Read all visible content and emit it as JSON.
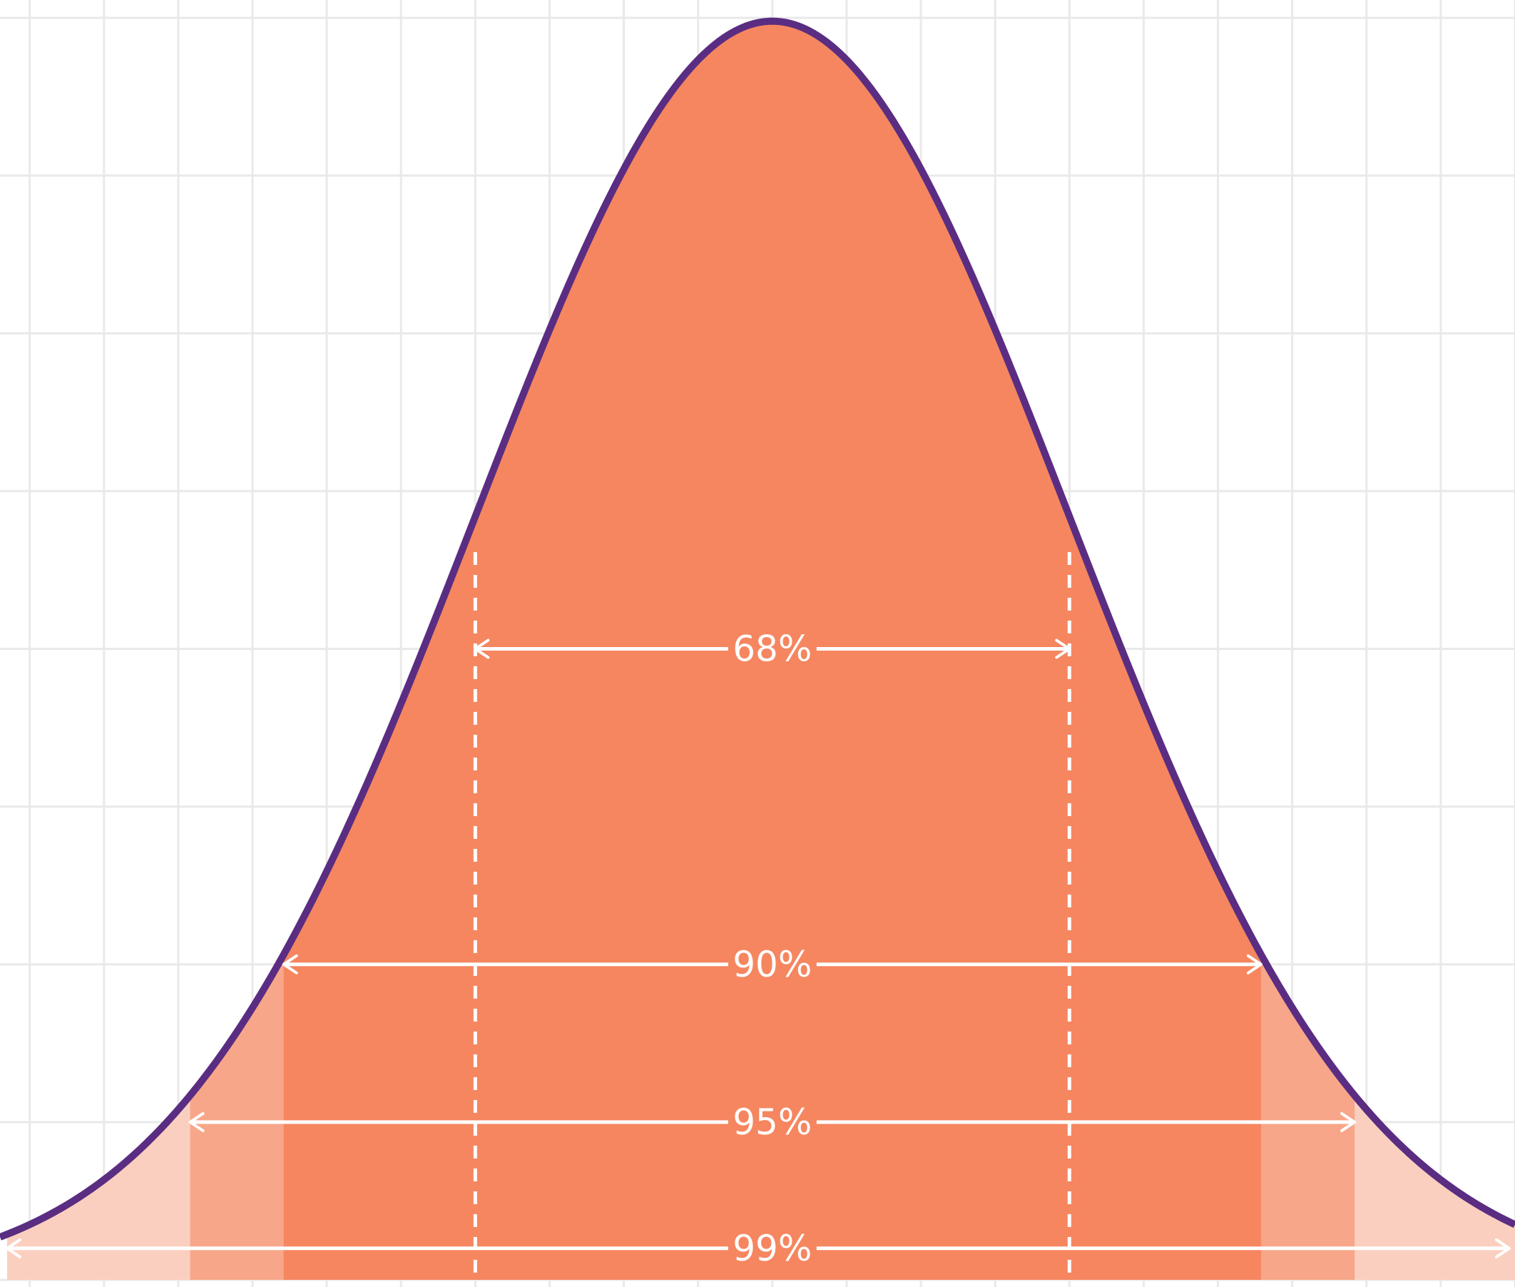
{
  "chart_data": {
    "type": "area",
    "title": "",
    "xlabel": "",
    "ylabel": "",
    "distribution": {
      "kind": "normal",
      "mean": 0,
      "sd": 1
    },
    "xlim": [
      -2.6,
      2.5
    ],
    "ylim": [
      0,
      0.4
    ],
    "grid": true,
    "legend": "none",
    "bands": [
      {
        "label": "68%",
        "low": -1.0,
        "high": 1.0,
        "arrow_y": 0.2
      },
      {
        "label": "90%",
        "low": -1.645,
        "high": 1.645,
        "arrow_y": 0.1
      },
      {
        "label": "95%",
        "low": -1.96,
        "high": 1.96,
        "arrow_y": 0.05
      },
      {
        "label": "99%",
        "low": -2.576,
        "high": 2.576,
        "arrow_y": 0.01
      }
    ],
    "dashed_lines_x": [
      -1.0,
      1.0
    ],
    "colors": {
      "curve": "#5a2d82",
      "band_68": "#f5865f",
      "band_90": "#f5865f",
      "band_95": "#f8a689",
      "band_99": "#fbcfbf",
      "grid": "#e9e9e9",
      "annotation": "#ffffff"
    }
  }
}
